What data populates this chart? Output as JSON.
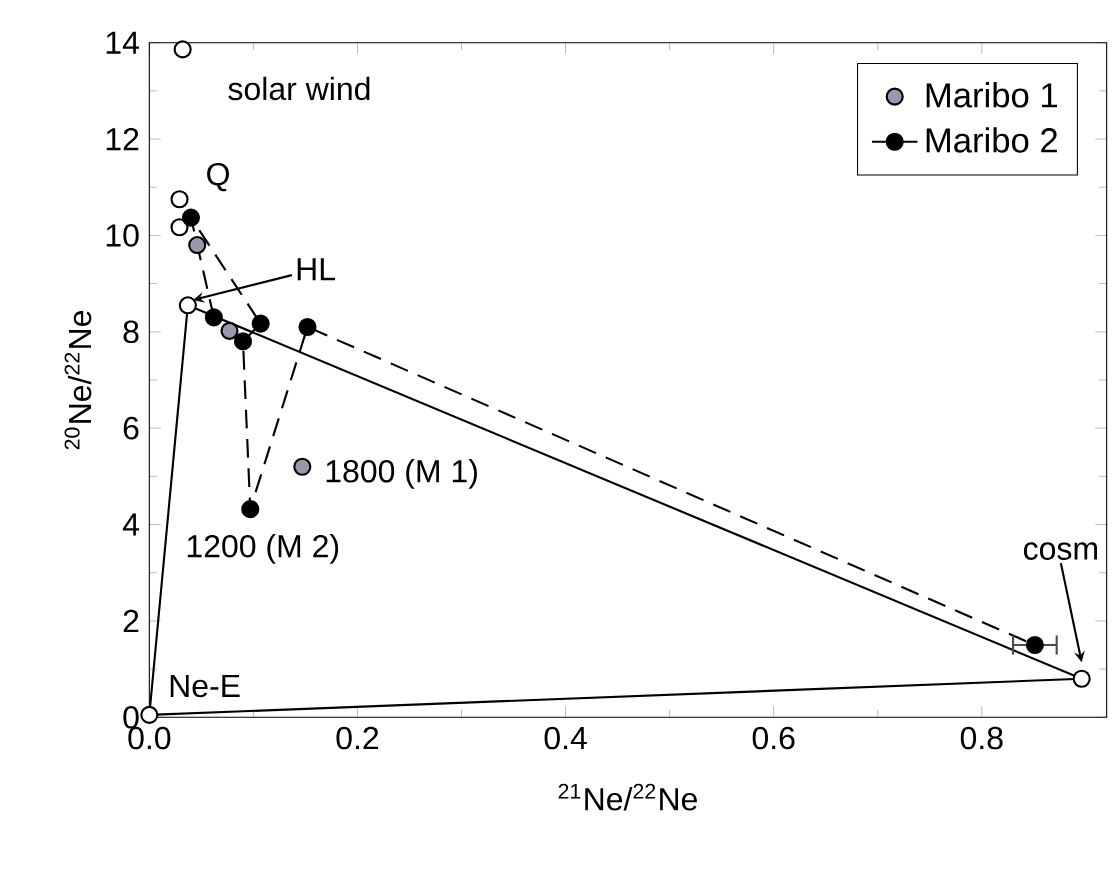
{
  "chart_data": {
    "type": "scatter",
    "xlabel": "$^{21}$Ne/$^{22}$Ne",
    "ylabel": "$^{20}$Ne/$^{22}$Ne",
    "xlim": [
      0,
      0.92
    ],
    "ylim": [
      0,
      14
    ],
    "xticks": [
      {
        "value": 0,
        "label": "0.0"
      },
      {
        "value": 0.2,
        "label": "0.2"
      },
      {
        "value": 0.4,
        "label": "0.4"
      },
      {
        "value": 0.6,
        "label": "0.6"
      },
      {
        "value": 0.8,
        "label": "0.8"
      }
    ],
    "yticks": [
      0,
      2,
      4,
      6,
      8,
      10,
      12,
      14
    ],
    "grid": false,
    "legend": "top right",
    "series": [
      {
        "type": "line",
        "color": "#000000",
        "marker": "none",
        "line_style": "solid",
        "x": [
          0,
          0.037,
          0.896
        ],
        "values": [
          0.05,
          8.55,
          0.8
        ]
      },
      {
        "type": "line",
        "color": "#000000",
        "marker": "none",
        "line_style": "solid",
        "x": [
          0,
          0.896
        ],
        "values": [
          0.05,
          0.8
        ]
      },
      {
        "type": "scatter",
        "color": "#ffffff",
        "marker": "circle",
        "x": [
          0.032,
          0.029,
          0.029,
          0.037,
          0.896,
          0
        ],
        "values": [
          13.86,
          10.75,
          10.17,
          8.55,
          0.8,
          0.05
        ]
      },
      {
        "type": "scatter",
        "name": "Maribo 1",
        "color": "#9a99ab",
        "marker": "circle",
        "x": [
          0.046,
          0.077,
          0.147
        ],
        "values": [
          9.8,
          8.02,
          5.2
        ]
      },
      {
        "type": "line",
        "name": "Maribo 2",
        "color": "#000000",
        "marker": "circle",
        "line_style": "dashed",
        "x": [
          0.062,
          0.04,
          0.107,
          0.09,
          0.097,
          0.152,
          0.851
        ],
        "values": [
          8.3,
          10.37,
          8.17,
          7.8,
          4.32,
          8.1,
          1.5
        ],
        "xerrors": [
          null,
          null,
          null,
          null,
          null,
          null,
          0.022
        ]
      }
    ],
    "annotations": [
      {
        "text": "solar wind",
        "x": 0.032,
        "y": 13.86
      },
      {
        "text": "Q",
        "x": 0.029,
        "y": 10.75
      },
      {
        "text": "HL",
        "x": 0.037,
        "y": 8.55
      },
      {
        "text": "1800 (M 1)",
        "x": 0.147,
        "y": 5.2
      },
      {
        "text": "1200 (M 2)",
        "x": 0.097,
        "y": 4.32
      },
      {
        "text": "cosm",
        "x": 0.896,
        "y": 0.95
      },
      {
        "text": "Ne-E",
        "x": 0,
        "y": 0.05
      }
    ]
  }
}
